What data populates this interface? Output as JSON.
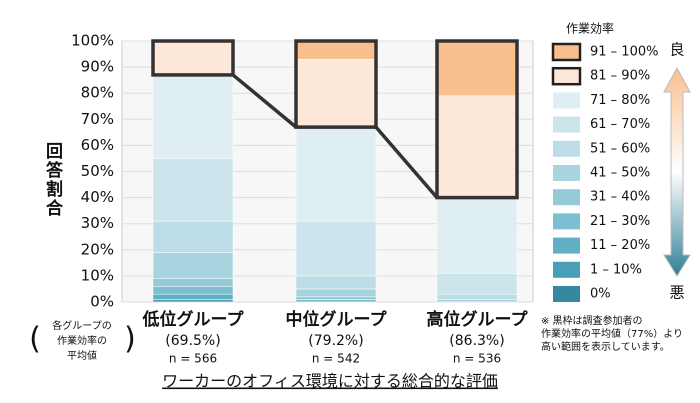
{
  "chart_data": {
    "type": "stacked_bar",
    "categories": [
      "低位グループ",
      "中位グループ",
      "高位グループ"
    ],
    "averages": [
      "(69.5%)",
      "(79.2%)",
      "(86.3%)"
    ],
    "sample_sizes": [
      "n = 566",
      "n = 542",
      "n = 536"
    ],
    "y_label": "回答割合",
    "x_label": "ワーカーのオフィス環境に対する総合的な評価",
    "legend_title": "作業効率",
    "legend_top": "良",
    "legend_bottom": "悪",
    "average_note": [
      "各グループの",
      "作業効率の",
      "平均値"
    ],
    "note": [
      "※ 黒枠は調査参加者の",
      "作業効率の平均値（77%）より",
      "高い範囲を表示しています。"
    ],
    "ylim": [
      0,
      100
    ],
    "yticks": [
      {
        "value": 0,
        "label": "0%"
      },
      {
        "value": 10,
        "label": "10%"
      },
      {
        "value": 20,
        "label": "20%"
      },
      {
        "value": 30,
        "label": "30%"
      },
      {
        "value": 40,
        "label": "40%"
      },
      {
        "value": 50,
        "label": "50%"
      },
      {
        "value": 60,
        "label": "60%"
      },
      {
        "value": 70,
        "label": "70%"
      },
      {
        "value": 80,
        "label": "80%"
      },
      {
        "value": 90,
        "label": "90%"
      },
      {
        "value": 100,
        "label": "100%"
      }
    ],
    "grid": true,
    "series": [
      {
        "name": "0%",
        "color": "#35889f",
        "values": [
          0,
          0,
          0
        ]
      },
      {
        "name": "1 – 10%",
        "color": "#4a9fb7",
        "values": [
          1,
          0,
          0
        ]
      },
      {
        "name": "11 – 20%",
        "color": "#5fb0c4",
        "values": [
          2,
          0,
          0
        ]
      },
      {
        "name": "21 – 30%",
        "color": "#7cbfd0",
        "values": [
          3,
          1,
          0
        ]
      },
      {
        "name": "31 – 40%",
        "color": "#94cad8",
        "values": [
          3,
          1,
          0
        ]
      },
      {
        "name": "41 – 50%",
        "color": "#a8d4e0",
        "values": [
          10,
          3,
          1
        ]
      },
      {
        "name": "51 – 60%",
        "color": "#bcdde7",
        "values": [
          12,
          5,
          2
        ]
      },
      {
        "name": "61 – 70%",
        "color": "#cce5ec",
        "values": [
          24,
          21,
          8
        ]
      },
      {
        "name": "71 – 80%",
        "color": "#deeef3",
        "values": [
          32,
          36,
          29
        ]
      },
      {
        "name": "81 – 90%",
        "color": "#fde7d8",
        "values": [
          13,
          26,
          39
        ],
        "outlined": true
      },
      {
        "name": "91 – 100%",
        "color": "#f9c08f",
        "values": [
          0,
          7,
          21
        ],
        "outlined": true
      }
    ]
  }
}
